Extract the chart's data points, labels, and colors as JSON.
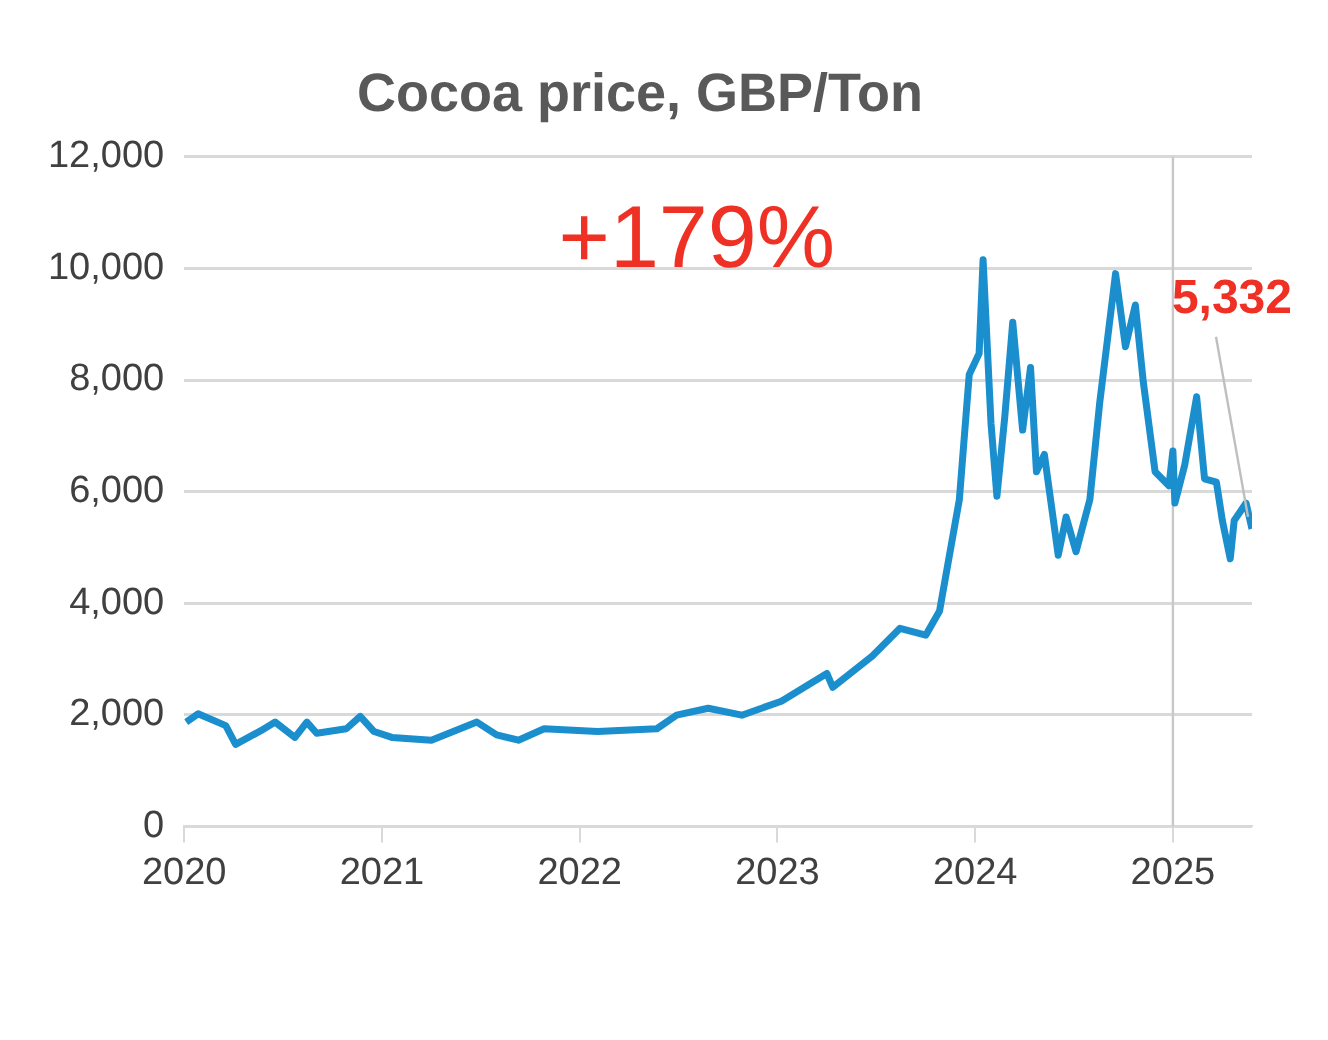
{
  "chart_data": {
    "type": "line",
    "title": "Cocoa price, GBP/Ton",
    "x": [
      2020.01,
      2020.07,
      2020.21,
      2020.26,
      2020.39,
      2020.46,
      2020.56,
      2020.62,
      2020.67,
      2020.82,
      2020.89,
      2020.96,
      2021.05,
      2021.25,
      2021.48,
      2021.58,
      2021.69,
      2021.82,
      2022.09,
      2022.39,
      2022.49,
      2022.65,
      2022.82,
      2023.02,
      2023.25,
      2023.28,
      2023.48,
      2023.62,
      2023.75,
      2023.82,
      2023.87,
      2023.92,
      2023.97,
      2024.02,
      2024.04,
      2024.08,
      2024.11,
      2024.15,
      2024.19,
      2024.24,
      2024.28,
      2024.31,
      2024.35,
      2024.42,
      2024.46,
      2024.51,
      2024.58,
      2024.63,
      2024.71,
      2024.76,
      2024.81,
      2024.85,
      2024.91,
      2024.98,
      2025.0,
      2025.01,
      2025.06,
      2025.12,
      2025.16,
      2025.22,
      2025.25,
      2025.29,
      2025.31,
      2025.37,
      2025.4
    ],
    "series": [
      {
        "color": "#1b8fcd",
        "values": [
          1869,
          2018,
          1806,
          1470,
          1720,
          1869,
          1595,
          1869,
          1670,
          1750,
          1970,
          1700,
          1595,
          1545,
          1869,
          1640,
          1545,
          1750,
          1700,
          1750,
          1993,
          2118,
          1993,
          2243,
          2740,
          2493,
          3054,
          3551,
          3426,
          3862,
          4860,
          5857,
          8100,
          8473,
          10156,
          7226,
          5918,
          7350,
          9035,
          7102,
          8224,
          6355,
          6666,
          4860,
          5545,
          4922,
          5857,
          7600,
          9906,
          8597,
          9345,
          7973,
          6355,
          6105,
          6728,
          5794,
          6480,
          7700,
          6230,
          6168,
          5483,
          4797,
          5483,
          5794,
          5332
        ]
      }
    ],
    "xlim": [
      2020,
      2025.4
    ],
    "xticks": [
      2020,
      2021,
      2022,
      2023,
      2024,
      2025
    ],
    "ylim": [
      0,
      12000
    ],
    "yticks": [
      {
        "value": 0,
        "label": "0"
      },
      {
        "value": 2000,
        "label": "2,000"
      },
      {
        "value": 4000,
        "label": "4,000"
      },
      {
        "value": 6000,
        "label": "6,000"
      },
      {
        "value": 8000,
        "label": "8,000"
      },
      {
        "value": 10000,
        "label": "10,000"
      },
      {
        "value": 12000,
        "label": "12,000"
      }
    ],
    "grid": "y",
    "legend": false,
    "marker": "none",
    "line_style": "solid",
    "ref_lines": [
      {
        "axis": "x",
        "value": 2025,
        "color": "#c8c8c8"
      }
    ],
    "annotations": [
      "+179%",
      {
        "text": "5,332",
        "x": 2025.4,
        "y": 5332
      }
    ]
  }
}
